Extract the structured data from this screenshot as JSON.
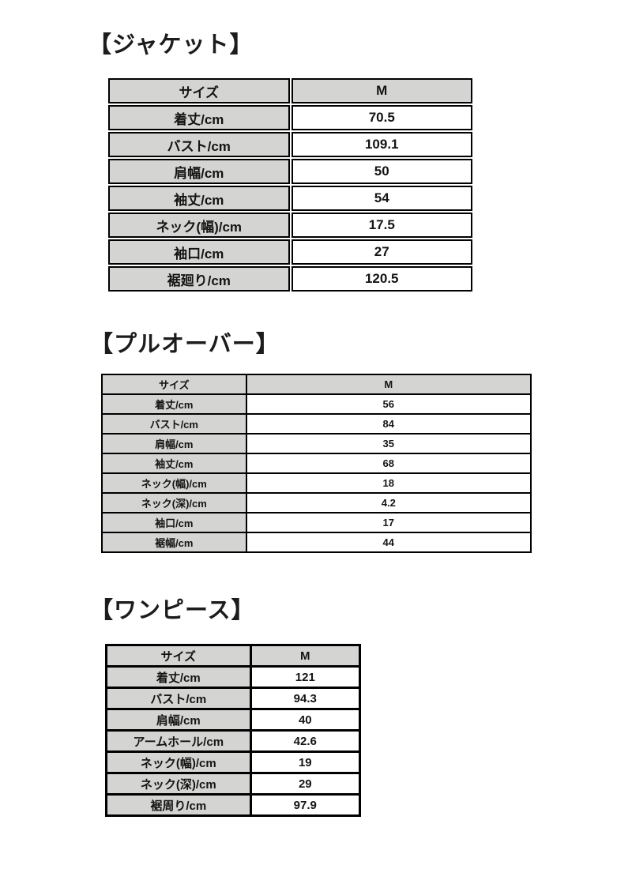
{
  "colors": {
    "page_background": "#ffffff",
    "header_cell_background": "#d4d4d2",
    "value_cell_background": "#ffffff",
    "border": "#000000",
    "text": "#141414"
  },
  "sections": [
    {
      "id": "jacket",
      "title": "【ジャケット】",
      "table": {
        "columns": [
          "サイズ",
          "M"
        ],
        "rows": [
          [
            "着丈/cm",
            "70.5"
          ],
          [
            "バスト/cm",
            "109.1"
          ],
          [
            "肩幅/cm",
            "50"
          ],
          [
            "袖丈/cm",
            "54"
          ],
          [
            "ネック(幅)/cm",
            "17.5"
          ],
          [
            "袖口/cm",
            "27"
          ],
          [
            "裾廻り/cm",
            "120.5"
          ]
        ]
      }
    },
    {
      "id": "pullover",
      "title": "【プルオーバー】",
      "table": {
        "columns": [
          "サイズ",
          "M"
        ],
        "rows": [
          [
            "着丈/cm",
            "56"
          ],
          [
            "バスト/cm",
            "84"
          ],
          [
            "肩幅/cm",
            "35"
          ],
          [
            "袖丈/cm",
            "68"
          ],
          [
            "ネック(幅)/cm",
            "18"
          ],
          [
            "ネック(深)/cm",
            "4.2"
          ],
          [
            "袖口/cm",
            "17"
          ],
          [
            "裾幅/cm",
            "44"
          ]
        ]
      }
    },
    {
      "id": "onepiece",
      "title": "【ワンピース】",
      "table": {
        "columns": [
          "サイズ",
          "M"
        ],
        "rows": [
          [
            "着丈/cm",
            "121"
          ],
          [
            "バスト/cm",
            "94.3"
          ],
          [
            "肩幅/cm",
            "40"
          ],
          [
            "アームホール/cm",
            "42.6"
          ],
          [
            "ネック(幅)/cm",
            "19"
          ],
          [
            "ネック(深)/cm",
            "29"
          ],
          [
            "裾周り/cm",
            "97.9"
          ]
        ]
      }
    }
  ]
}
